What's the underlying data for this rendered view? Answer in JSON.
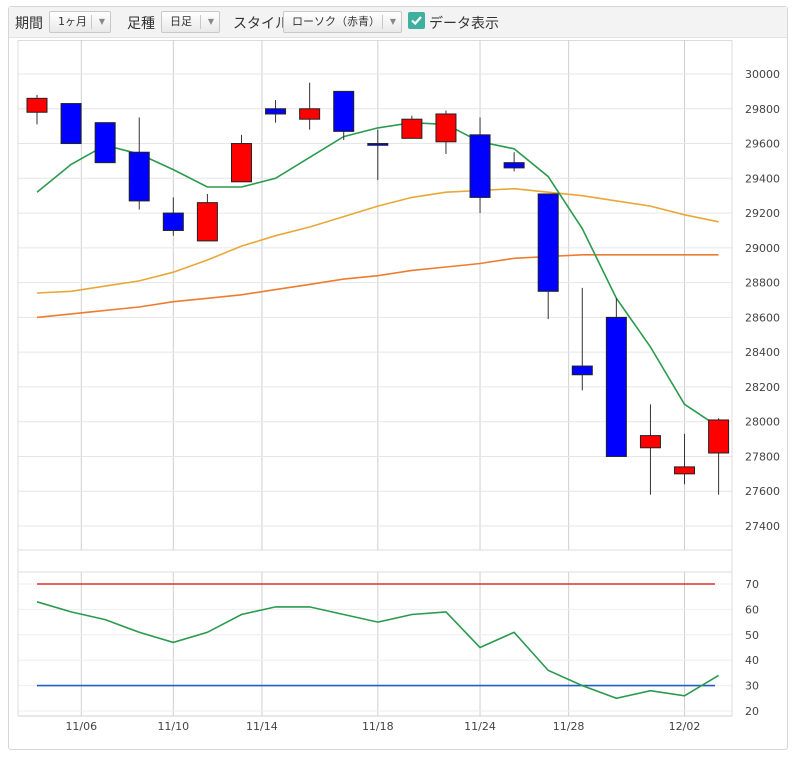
{
  "toolbar": {
    "period_label": "期間",
    "period_value": "1ヶ月",
    "bar_label": "足種",
    "bar_value": "日足",
    "style_label": "スタイル",
    "style_value": "ローソク（赤青）",
    "data_display_label": "データ表示",
    "data_display_checked": true
  },
  "colors": {
    "up_candle": "#ff0000",
    "down_candle": "#0000ff",
    "ma_short": "#2b9a4e",
    "ma_mid": "#e8a838",
    "ma_long": "#ee7c30",
    "rsi_line": "#2b9a4e",
    "rsi_upper": "#e03030",
    "rsi_lower": "#2060c0"
  },
  "chart_data": [
    {
      "type": "candlestick",
      "ylim": [
        27300,
        30150
      ],
      "y_ticks": [
        "30000",
        "29800",
        "29600",
        "29400",
        "29200",
        "29000",
        "28800",
        "28600",
        "28400",
        "28200",
        "28000",
        "27800",
        "27600",
        "27400"
      ],
      "x_ticks": [
        "11/06",
        "11/10",
        "11/14",
        "11/18",
        "11/24",
        "11/28",
        "12/02"
      ],
      "candles": [
        {
          "o": 29780,
          "h": 29880,
          "l": 29710,
          "c": 29860
        },
        {
          "o": 29830,
          "h": 29830,
          "l": 29600,
          "c": 29600
        },
        {
          "o": 29720,
          "h": 29720,
          "l": 29490,
          "c": 29490
        },
        {
          "o": 29550,
          "h": 29750,
          "l": 29220,
          "c": 29270
        },
        {
          "o": 29200,
          "h": 29290,
          "l": 29070,
          "c": 29100
        },
        {
          "o": 29040,
          "h": 29310,
          "l": 29040,
          "c": 29260
        },
        {
          "o": 29380,
          "h": 29650,
          "l": 29380,
          "c": 29600
        },
        {
          "o": 29800,
          "h": 29850,
          "l": 29720,
          "c": 29770
        },
        {
          "o": 29740,
          "h": 29950,
          "l": 29680,
          "c": 29800
        },
        {
          "o": 29900,
          "h": 29900,
          "l": 29620,
          "c": 29670
        },
        {
          "o": 29600,
          "h": 29680,
          "l": 29390,
          "c": 29590
        },
        {
          "o": 29630,
          "h": 29760,
          "l": 29630,
          "c": 29740
        },
        {
          "o": 29610,
          "h": 29790,
          "l": 29540,
          "c": 29770
        },
        {
          "o": 29650,
          "h": 29750,
          "l": 29200,
          "c": 29290
        },
        {
          "o": 29490,
          "h": 29550,
          "l": 29440,
          "c": 29460
        },
        {
          "o": 29310,
          "h": 29310,
          "l": 28590,
          "c": 28750
        },
        {
          "o": 28320,
          "h": 28770,
          "l": 28180,
          "c": 28270
        },
        {
          "o": 28600,
          "h": 28710,
          "l": 27800,
          "c": 27800
        },
        {
          "o": 27850,
          "h": 28100,
          "l": 27580,
          "c": 27920
        },
        {
          "o": 27700,
          "h": 27930,
          "l": 27640,
          "c": 27740
        },
        {
          "o": 27820,
          "h": 28020,
          "l": 27580,
          "c": 28010
        }
      ],
      "ma_short": [
        29320,
        29480,
        29590,
        29540,
        29450,
        29350,
        29350,
        29400,
        29520,
        29640,
        29690,
        29720,
        29710,
        29610,
        29570,
        29410,
        29110,
        28710,
        28430,
        28100,
        27970
      ],
      "ma_mid": [
        28740,
        28750,
        28780,
        28810,
        28860,
        28930,
        29010,
        29070,
        29120,
        29180,
        29240,
        29290,
        29320,
        29330,
        29340,
        29320,
        29300,
        29270,
        29240,
        29190,
        29150
      ],
      "ma_long": [
        28600,
        28620,
        28640,
        28660,
        28690,
        28710,
        28730,
        28760,
        28790,
        28820,
        28840,
        28870,
        28890,
        28910,
        28940,
        28950,
        28960,
        28960,
        28960,
        28960,
        28960
      ]
    },
    {
      "type": "line",
      "ylim": [
        17,
        73
      ],
      "y_ticks": [
        "70",
        "60",
        "50",
        "40",
        "30",
        "20"
      ],
      "upper_level": 70,
      "lower_level": 30,
      "values": [
        63,
        59,
        56,
        51,
        47,
        51,
        58,
        61,
        61,
        58,
        55,
        58,
        59,
        45,
        51,
        36,
        30,
        25,
        28,
        26,
        34
      ]
    }
  ]
}
